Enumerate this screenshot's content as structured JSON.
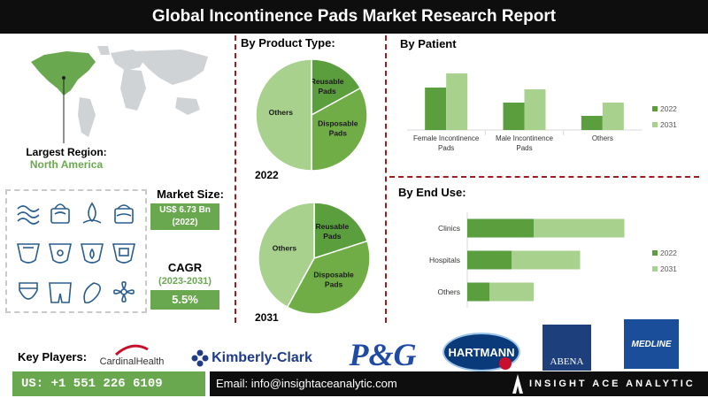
{
  "report": {
    "title": "Global Incontinence Pads Market Research Report"
  },
  "colors": {
    "dark_green": "#5b9e3d",
    "light_green": "#a9d18e",
    "mid_green": "#70ad47",
    "accent_red": "#9e1c1c",
    "header_bg": "#0e0e0e"
  },
  "region": {
    "label": "Largest Region:",
    "value": "North America"
  },
  "market": {
    "size_label": "Market Size:",
    "size_value": "US$ 6.73 Bn",
    "size_year": "(2022)",
    "cagr_label": "CAGR",
    "cagr_period": "(2023-2031)",
    "cagr_value": "5.5%"
  },
  "product_type": {
    "title": "By Product Type:"
  },
  "patient": {
    "title": "By Patient"
  },
  "end_use": {
    "title": "By End Use:"
  },
  "chart_data": [
    {
      "type": "pie",
      "title": "2022",
      "labels": [
        "Reusable Pads",
        "Disposable Pads",
        "Others"
      ],
      "values": [
        17,
        33,
        50
      ]
    },
    {
      "type": "pie",
      "title": "2031",
      "labels": [
        "Reusable Pads",
        "Disposable Pads",
        "Others"
      ],
      "values": [
        20,
        38,
        42
      ]
    },
    {
      "type": "bar",
      "orientation": "vertical",
      "title": "",
      "categories": [
        "Female Incontinence Pads",
        "Male Incontinence Pads",
        "Others"
      ],
      "series": [
        {
          "name": "2022",
          "values": [
            48,
            31,
            16
          ],
          "color": "#5b9e3d"
        },
        {
          "name": "2031",
          "values": [
            64,
            46,
            31
          ],
          "color": "#a9d18e"
        }
      ],
      "ylim": [
        0,
        75
      ],
      "legend": "right"
    },
    {
      "type": "bar",
      "orientation": "horizontal-stacked",
      "title": "",
      "categories": [
        "Clinics",
        "Hospitals",
        "Others"
      ],
      "series": [
        {
          "name": "2022",
          "values": [
            30,
            20,
            10
          ],
          "color": "#5b9e3d"
        },
        {
          "name": "2031",
          "values": [
            41,
            31,
            20
          ],
          "color": "#a9d18e"
        }
      ],
      "xlim": [
        0,
        80
      ],
      "legend": "right"
    }
  ],
  "key_players": {
    "label": "Key Players:",
    "logos": [
      {
        "name": "Cardinal Health",
        "text": "CardinalHealth"
      },
      {
        "name": "Kimberly-Clark",
        "text": "Kimberly-Clark"
      },
      {
        "name": "P&G",
        "text": "P&G"
      },
      {
        "name": "Hartmann",
        "text": "HARTMANN"
      },
      {
        "name": "Abena",
        "text": "ABENA"
      },
      {
        "name": "Medline",
        "text": "MEDLINE"
      }
    ]
  },
  "footer": {
    "phone": "US: +1 551 226 6109",
    "email": "Email: info@insightaceanalytic.com",
    "brand": "INSIGHT ACE ANALYTIC"
  },
  "icons": [
    "wind-icon",
    "tissue-icon",
    "droplet-icon",
    "tissue-box-icon",
    "diaper-icon",
    "diaper-icon",
    "diaper-icon",
    "diaper-icon",
    "diaper-icon",
    "brief-icon",
    "pad-icon",
    "flower-icon"
  ]
}
